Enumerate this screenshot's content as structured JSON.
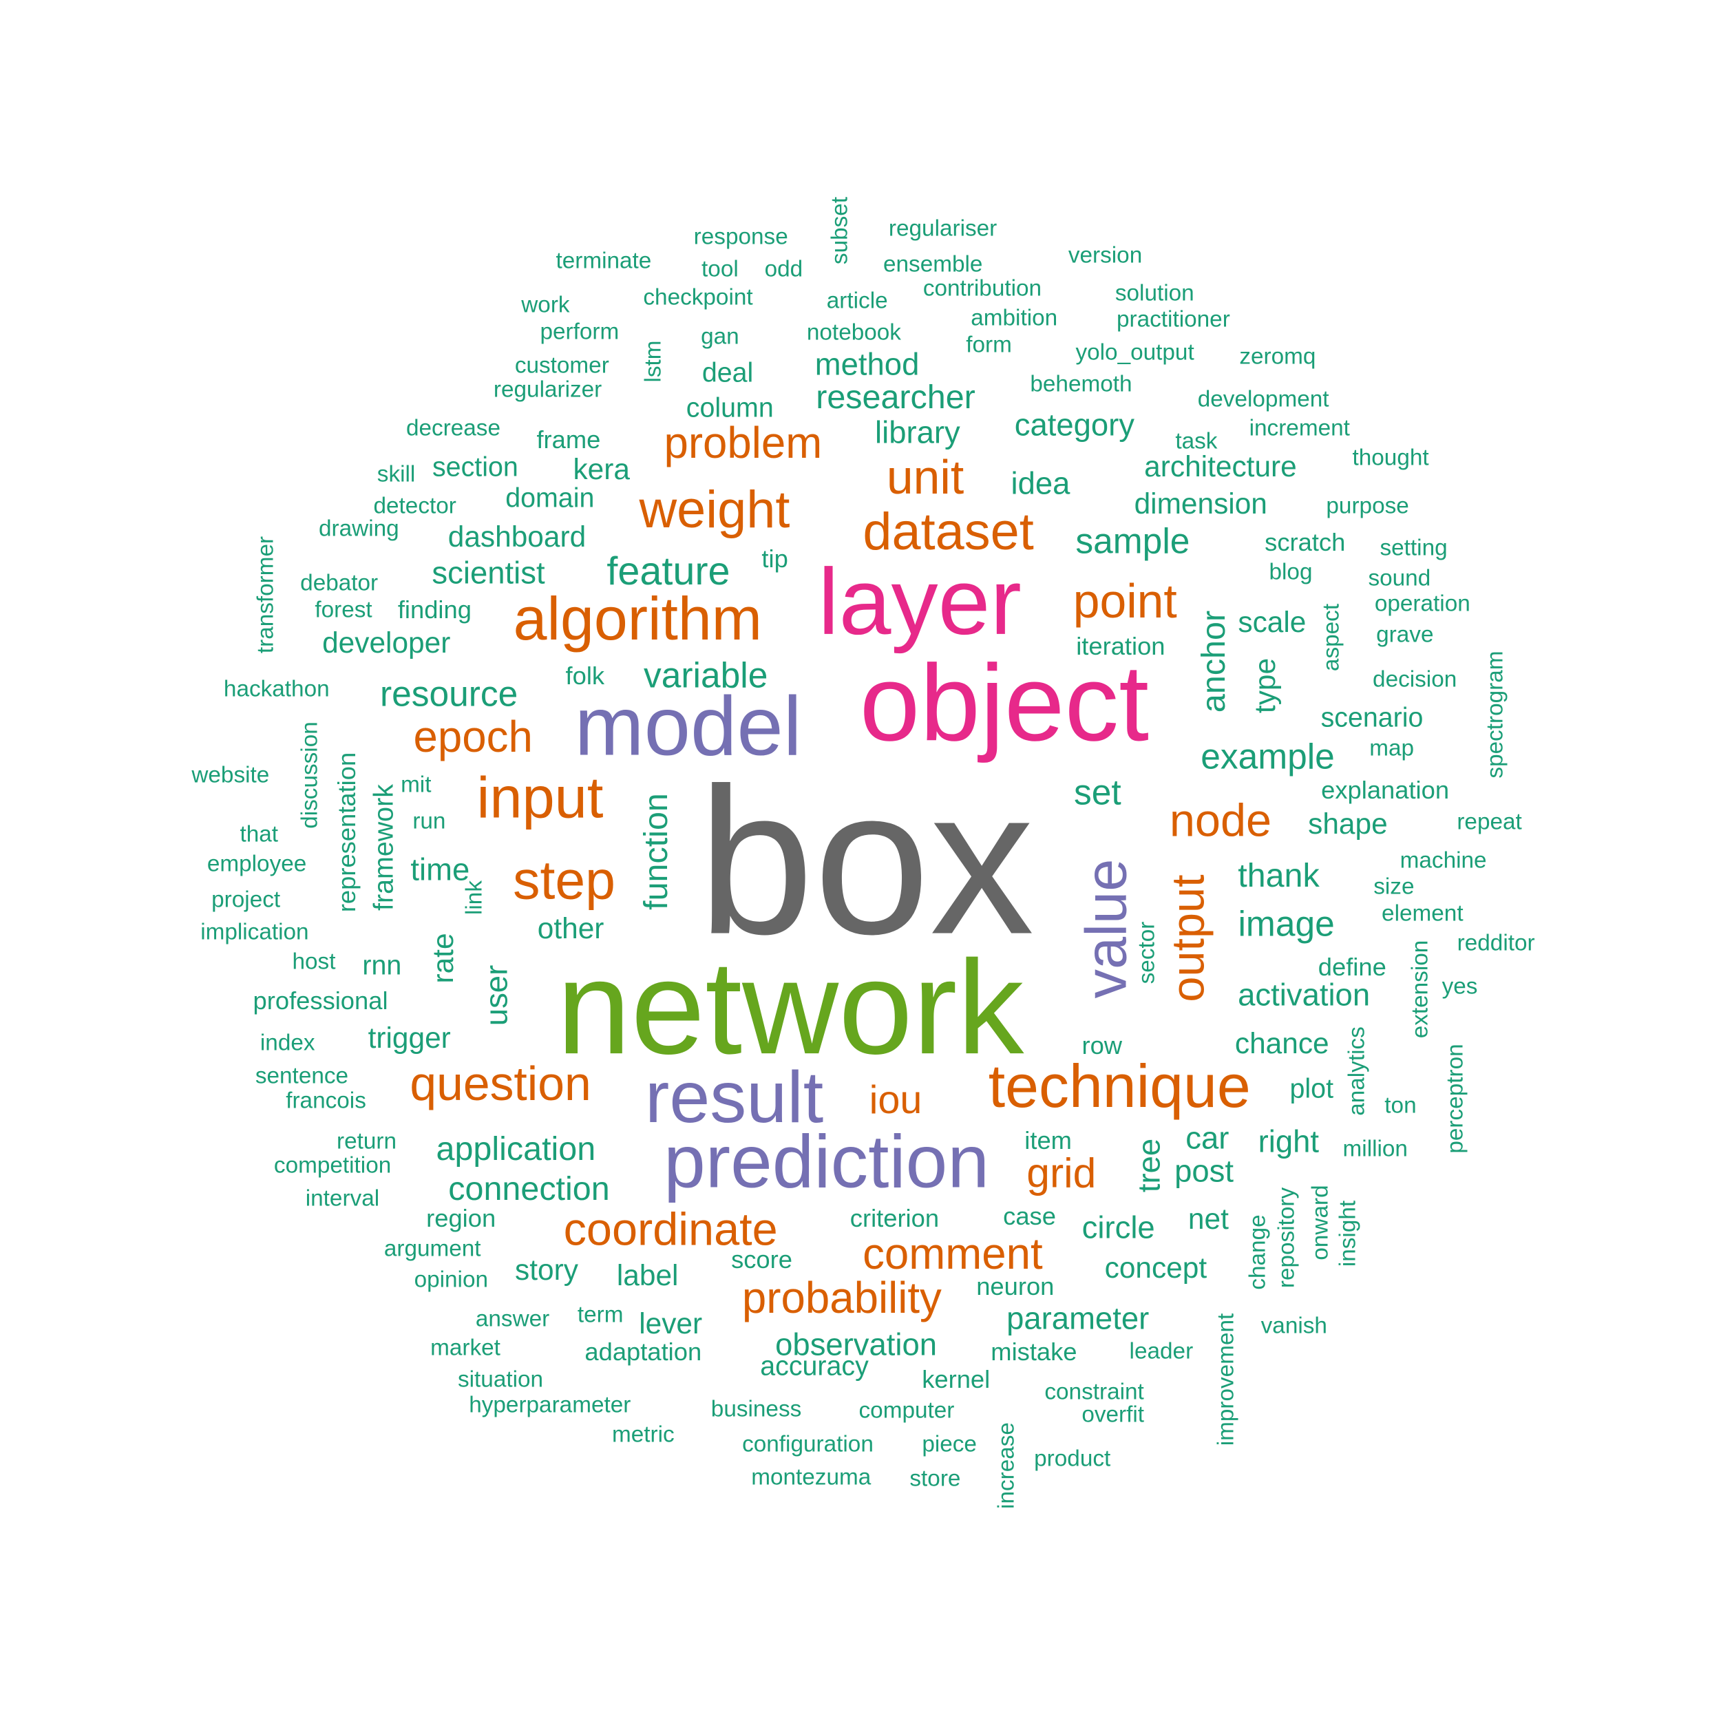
{
  "colors": {
    "teal": "#1b9e77",
    "orange": "#d95f02",
    "purple": "#7570b3",
    "magenta": "#e7298a",
    "green": "#66a61e",
    "gray": "#666666"
  },
  "words": [
    {
      "text": "box",
      "color": "gray"
    },
    {
      "text": "network",
      "color": "green"
    },
    {
      "text": "object",
      "color": "magenta"
    },
    {
      "text": "layer",
      "color": "magenta"
    },
    {
      "text": "model",
      "color": "purple"
    },
    {
      "text": "result",
      "color": "purple"
    },
    {
      "text": "prediction",
      "color": "purple"
    },
    {
      "text": "value",
      "color": "purple"
    },
    {
      "text": "algorithm",
      "color": "orange"
    },
    {
      "text": "technique",
      "color": "orange"
    },
    {
      "text": "dataset",
      "color": "orange"
    },
    {
      "text": "input",
      "color": "orange"
    },
    {
      "text": "weight",
      "color": "orange"
    },
    {
      "text": "step",
      "color": "orange"
    },
    {
      "text": "point",
      "color": "orange"
    },
    {
      "text": "question",
      "color": "orange"
    },
    {
      "text": "unit",
      "color": "orange"
    },
    {
      "text": "node",
      "color": "orange"
    },
    {
      "text": "coordinate",
      "color": "orange"
    },
    {
      "text": "output",
      "color": "orange"
    },
    {
      "text": "comment",
      "color": "orange"
    },
    {
      "text": "probability",
      "color": "orange"
    },
    {
      "text": "problem",
      "color": "orange"
    },
    {
      "text": "epoch",
      "color": "orange"
    },
    {
      "text": "grid",
      "color": "orange"
    },
    {
      "text": "iou",
      "color": "orange"
    },
    {
      "text": "feature",
      "color": "teal"
    },
    {
      "text": "sample",
      "color": "teal"
    },
    {
      "text": "example",
      "color": "teal"
    },
    {
      "text": "resource",
      "color": "teal"
    },
    {
      "text": "variable",
      "color": "teal"
    },
    {
      "text": "image",
      "color": "teal"
    },
    {
      "text": "set",
      "color": "teal"
    },
    {
      "text": "function",
      "color": "teal"
    },
    {
      "text": "anchor",
      "color": "teal"
    },
    {
      "text": "researcher",
      "color": "teal"
    },
    {
      "text": "method",
      "color": "teal"
    },
    {
      "text": "category",
      "color": "teal"
    },
    {
      "text": "idea",
      "color": "teal"
    },
    {
      "text": "library",
      "color": "teal"
    },
    {
      "text": "thank",
      "color": "teal"
    },
    {
      "text": "time",
      "color": "teal"
    },
    {
      "text": "user",
      "color": "teal"
    },
    {
      "text": "scientist",
      "color": "teal"
    },
    {
      "text": "dashboard",
      "color": "teal"
    },
    {
      "text": "dimension",
      "color": "teal"
    },
    {
      "text": "architecture",
      "color": "teal"
    },
    {
      "text": "application",
      "color": "teal"
    },
    {
      "text": "connection",
      "color": "teal"
    },
    {
      "text": "observation",
      "color": "teal"
    },
    {
      "text": "parameter",
      "color": "teal"
    },
    {
      "text": "activation",
      "color": "teal"
    },
    {
      "text": "circle",
      "color": "teal"
    },
    {
      "text": "tree",
      "color": "teal"
    },
    {
      "text": "post",
      "color": "teal"
    },
    {
      "text": "car",
      "color": "teal"
    },
    {
      "text": "right",
      "color": "teal"
    },
    {
      "text": "shape",
      "color": "teal"
    },
    {
      "text": "scenario",
      "color": "teal"
    },
    {
      "text": "type",
      "color": "teal"
    },
    {
      "text": "scale",
      "color": "teal"
    },
    {
      "text": "trigger",
      "color": "teal"
    },
    {
      "text": "label",
      "color": "teal"
    },
    {
      "text": "story",
      "color": "teal"
    },
    {
      "text": "kera",
      "color": "teal"
    },
    {
      "text": "developer",
      "color": "teal"
    },
    {
      "text": "framework",
      "color": "teal"
    },
    {
      "text": "rate",
      "color": "teal"
    },
    {
      "text": "chance",
      "color": "teal"
    },
    {
      "text": "concept",
      "color": "teal"
    },
    {
      "text": "lever",
      "color": "teal"
    },
    {
      "text": "accuracy",
      "color": "teal"
    },
    {
      "text": "net",
      "color": "teal"
    },
    {
      "text": "other",
      "color": "teal"
    },
    {
      "text": "rnn",
      "color": "teal"
    },
    {
      "text": "domain",
      "color": "teal"
    },
    {
      "text": "section",
      "color": "teal"
    },
    {
      "text": "column",
      "color": "teal"
    },
    {
      "text": "deal",
      "color": "teal"
    },
    {
      "text": "frame",
      "color": "teal"
    },
    {
      "text": "representation",
      "color": "teal"
    },
    {
      "text": "explanation",
      "color": "teal"
    },
    {
      "text": "plot",
      "color": "teal"
    },
    {
      "text": "define",
      "color": "teal"
    },
    {
      "text": "scratch",
      "color": "teal"
    },
    {
      "text": "iteration",
      "color": "teal"
    },
    {
      "text": "folk",
      "color": "teal"
    },
    {
      "text": "tip",
      "color": "teal"
    },
    {
      "text": "finding",
      "color": "teal"
    },
    {
      "text": "sector",
      "color": "teal"
    },
    {
      "text": "link",
      "color": "teal"
    },
    {
      "text": "row",
      "color": "teal"
    },
    {
      "text": "item",
      "color": "teal"
    },
    {
      "text": "case",
      "color": "teal"
    },
    {
      "text": "criterion",
      "color": "teal"
    },
    {
      "text": "score",
      "color": "teal"
    },
    {
      "text": "neuron",
      "color": "teal"
    },
    {
      "text": "mistake",
      "color": "teal"
    },
    {
      "text": "kernel",
      "color": "teal"
    },
    {
      "text": "adaptation",
      "color": "teal"
    },
    {
      "text": "term",
      "color": "teal"
    },
    {
      "text": "region",
      "color": "teal"
    },
    {
      "text": "discussion",
      "color": "teal"
    },
    {
      "text": "professional",
      "color": "teal"
    },
    {
      "text": "mit",
      "color": "teal"
    },
    {
      "text": "run",
      "color": "teal"
    },
    {
      "text": "host",
      "color": "teal"
    },
    {
      "text": "index",
      "color": "teal"
    },
    {
      "text": "sentence",
      "color": "teal"
    },
    {
      "text": "francois",
      "color": "teal"
    },
    {
      "text": "return",
      "color": "teal"
    },
    {
      "text": "competition",
      "color": "teal"
    },
    {
      "text": "interval",
      "color": "teal"
    },
    {
      "text": "argument",
      "color": "teal"
    },
    {
      "text": "opinion",
      "color": "teal"
    },
    {
      "text": "answer",
      "color": "teal"
    },
    {
      "text": "market",
      "color": "teal"
    },
    {
      "text": "situation",
      "color": "teal"
    },
    {
      "text": "hyperparameter",
      "color": "teal"
    },
    {
      "text": "metric",
      "color": "teal"
    },
    {
      "text": "business",
      "color": "teal"
    },
    {
      "text": "computer",
      "color": "teal"
    },
    {
      "text": "configuration",
      "color": "teal"
    },
    {
      "text": "piece",
      "color": "teal"
    },
    {
      "text": "montezuma",
      "color": "teal"
    },
    {
      "text": "store",
      "color": "teal"
    },
    {
      "text": "increase",
      "color": "teal"
    },
    {
      "text": "product",
      "color": "teal"
    },
    {
      "text": "constraint",
      "color": "teal"
    },
    {
      "text": "overfit",
      "color": "teal"
    },
    {
      "text": "leader",
      "color": "teal"
    },
    {
      "text": "improvement",
      "color": "teal"
    },
    {
      "text": "vanish",
      "color": "teal"
    },
    {
      "text": "change",
      "color": "teal"
    },
    {
      "text": "repository",
      "color": "teal"
    },
    {
      "text": "onward",
      "color": "teal"
    },
    {
      "text": "insight",
      "color": "teal"
    },
    {
      "text": "million",
      "color": "teal"
    },
    {
      "text": "analytics",
      "color": "teal"
    },
    {
      "text": "ton",
      "color": "teal"
    },
    {
      "text": "perceptron",
      "color": "teal"
    },
    {
      "text": "extension",
      "color": "teal"
    },
    {
      "text": "yes",
      "color": "teal"
    },
    {
      "text": "redditor",
      "color": "teal"
    },
    {
      "text": "element",
      "color": "teal"
    },
    {
      "text": "size",
      "color": "teal"
    },
    {
      "text": "machine",
      "color": "teal"
    },
    {
      "text": "repeat",
      "color": "teal"
    },
    {
      "text": "spectrogram",
      "color": "teal"
    },
    {
      "text": "map",
      "color": "teal"
    },
    {
      "text": "decision",
      "color": "teal"
    },
    {
      "text": "grave",
      "color": "teal"
    },
    {
      "text": "operation",
      "color": "teal"
    },
    {
      "text": "sound",
      "color": "teal"
    },
    {
      "text": "setting",
      "color": "teal"
    },
    {
      "text": "blog",
      "color": "teal"
    },
    {
      "text": "aspect",
      "color": "teal"
    },
    {
      "text": "purpose",
      "color": "teal"
    },
    {
      "text": "thought",
      "color": "teal"
    },
    {
      "text": "increment",
      "color": "teal"
    },
    {
      "text": "task",
      "color": "teal"
    },
    {
      "text": "development",
      "color": "teal"
    },
    {
      "text": "zeromq",
      "color": "teal"
    },
    {
      "text": "practitioner",
      "color": "teal"
    },
    {
      "text": "solution",
      "color": "teal"
    },
    {
      "text": "version",
      "color": "teal"
    },
    {
      "text": "yolo_output",
      "color": "teal"
    },
    {
      "text": "behemoth",
      "color": "teal"
    },
    {
      "text": "form",
      "color": "teal"
    },
    {
      "text": "ambition",
      "color": "teal"
    },
    {
      "text": "contribution",
      "color": "teal"
    },
    {
      "text": "ensemble",
      "color": "teal"
    },
    {
      "text": "regulariser",
      "color": "teal"
    },
    {
      "text": "subset",
      "color": "teal"
    },
    {
      "text": "article",
      "color": "teal"
    },
    {
      "text": "notebook",
      "color": "teal"
    },
    {
      "text": "odd",
      "color": "teal"
    },
    {
      "text": "tool",
      "color": "teal"
    },
    {
      "text": "response",
      "color": "teal"
    },
    {
      "text": "checkpoint",
      "color": "teal"
    },
    {
      "text": "gan",
      "color": "teal"
    },
    {
      "text": "terminate",
      "color": "teal"
    },
    {
      "text": "work",
      "color": "teal"
    },
    {
      "text": "perform",
      "color": "teal"
    },
    {
      "text": "customer",
      "color": "teal"
    },
    {
      "text": "lstm",
      "color": "teal"
    },
    {
      "text": "regularizer",
      "color": "teal"
    },
    {
      "text": "decrease",
      "color": "teal"
    },
    {
      "text": "skill",
      "color": "teal"
    },
    {
      "text": "detector",
      "color": "teal"
    },
    {
      "text": "drawing",
      "color": "teal"
    },
    {
      "text": "transformer",
      "color": "teal"
    },
    {
      "text": "debator",
      "color": "teal"
    },
    {
      "text": "forest",
      "color": "teal"
    },
    {
      "text": "hackathon",
      "color": "teal"
    },
    {
      "text": "website",
      "color": "teal"
    },
    {
      "text": "that",
      "color": "teal"
    },
    {
      "text": "employee",
      "color": "teal"
    },
    {
      "text": "project",
      "color": "teal"
    },
    {
      "text": "implication",
      "color": "teal"
    }
  ]
}
